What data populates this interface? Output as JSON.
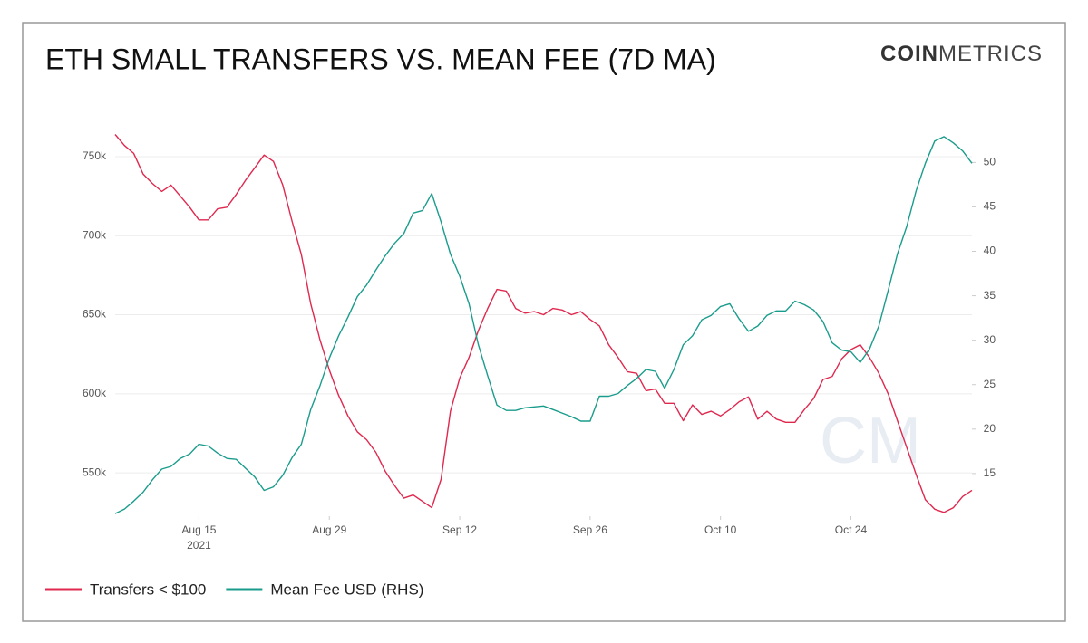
{
  "chart_data": {
    "type": "line",
    "title": "ETH SMALL TRANSFERS VS. MEAN FEE (7D MA)",
    "logo": {
      "bold": "COIN",
      "light": "METRICS"
    },
    "watermark": "CM",
    "x": [
      "2021-08-06",
      "2021-08-07",
      "2021-08-08",
      "2021-08-09",
      "2021-08-10",
      "2021-08-11",
      "2021-08-12",
      "2021-08-13",
      "2021-08-14",
      "2021-08-15",
      "2021-08-16",
      "2021-08-17",
      "2021-08-18",
      "2021-08-19",
      "2021-08-20",
      "2021-08-21",
      "2021-08-22",
      "2021-08-23",
      "2021-08-24",
      "2021-08-25",
      "2021-08-26",
      "2021-08-27",
      "2021-08-28",
      "2021-08-29",
      "2021-08-30",
      "2021-08-31",
      "2021-09-01",
      "2021-09-02",
      "2021-09-03",
      "2021-09-04",
      "2021-09-05",
      "2021-09-06",
      "2021-09-07",
      "2021-09-08",
      "2021-09-09",
      "2021-09-10",
      "2021-09-11",
      "2021-09-12",
      "2021-09-13",
      "2021-09-14",
      "2021-09-15",
      "2021-09-16",
      "2021-09-17",
      "2021-09-18",
      "2021-09-19",
      "2021-09-20",
      "2021-09-21",
      "2021-09-22",
      "2021-09-23",
      "2021-09-24",
      "2021-09-25",
      "2021-09-26",
      "2021-09-27",
      "2021-09-28",
      "2021-09-29",
      "2021-09-30",
      "2021-10-01",
      "2021-10-02",
      "2021-10-03",
      "2021-10-04",
      "2021-10-05",
      "2021-10-06",
      "2021-10-07",
      "2021-10-08",
      "2021-10-09",
      "2021-10-10",
      "2021-10-11",
      "2021-10-12",
      "2021-10-13",
      "2021-10-14",
      "2021-10-15",
      "2021-10-16",
      "2021-10-17",
      "2021-10-18",
      "2021-10-19",
      "2021-10-20",
      "2021-10-21",
      "2021-10-22",
      "2021-10-23",
      "2021-10-24",
      "2021-10-25",
      "2021-10-26",
      "2021-10-27",
      "2021-10-28",
      "2021-10-29",
      "2021-10-30",
      "2021-10-31",
      "2021-11-01",
      "2021-11-02",
      "2021-11-03",
      "2021-11-04",
      "2021-11-05",
      "2021-11-06"
    ],
    "xlim": [
      "2021-08-06",
      "2021-11-06"
    ],
    "xticks": [
      {
        "value": "2021-08-15",
        "label": "Aug 15"
      },
      {
        "value": "2021-08-29",
        "label": "Aug 29"
      },
      {
        "value": "2021-09-12",
        "label": "Sep 12"
      },
      {
        "value": "2021-09-26",
        "label": "Sep 26"
      },
      {
        "value": "2021-10-10",
        "label": "Oct 10"
      },
      {
        "value": "2021-10-24",
        "label": "Oct 24"
      }
    ],
    "x_year_label": "2021",
    "ylim": [
      522600,
      766000
    ],
    "yticks": [
      {
        "value": 550000,
        "label": "550k"
      },
      {
        "value": 600000,
        "label": "600k"
      },
      {
        "value": 650000,
        "label": "650k"
      },
      {
        "value": 700000,
        "label": "700k"
      },
      {
        "value": 750000,
        "label": "750k"
      }
    ],
    "y2lim": [
      10.2,
      53.5
    ],
    "y2ticks": [
      15,
      20,
      25,
      30,
      35,
      40,
      45,
      50
    ],
    "grid": true,
    "legend": "bottom-left",
    "series": [
      {
        "name": "Transfers < $100",
        "color": "#e0284f",
        "values": [
          764000,
          757000,
          752000,
          739000,
          733000,
          728000,
          732000,
          725000,
          718000,
          710000,
          710000,
          717000,
          718000,
          726000,
          735000,
          743000,
          751000,
          747000,
          732000,
          709000,
          688000,
          657000,
          634000,
          615000,
          599000,
          586000,
          576000,
          571000,
          563000,
          551000,
          542000,
          534000,
          536000,
          532000,
          528000,
          546000,
          589000,
          610000,
          623000,
          640000,
          654000,
          666000,
          665000,
          654000,
          651000,
          652000,
          650000,
          654000,
          653000,
          650000,
          652000,
          647000,
          643000,
          631000,
          623000,
          614000,
          613000,
          602000,
          603000,
          594000,
          594000,
          583000,
          593000,
          587000,
          589000,
          586000,
          590000,
          595000,
          598000,
          584000,
          589000,
          584000,
          582000,
          582000,
          590000,
          597000,
          609000,
          611000,
          622000,
          628000,
          631000,
          623000,
          613000,
          600000,
          583000,
          566000,
          549000,
          533000,
          527000,
          525000,
          528000,
          535000,
          539000
        ]
      },
      {
        "name": "Mean Fee USD (RHS)",
        "color": "#1a9c8c",
        "axis": "y2",
        "values": [
          10.5,
          11.0,
          11.9,
          12.9,
          14.3,
          15.5,
          15.8,
          16.7,
          17.2,
          18.3,
          18.1,
          17.3,
          16.7,
          16.6,
          15.6,
          14.6,
          13.1,
          13.5,
          14.8,
          16.8,
          18.3,
          22.2,
          24.9,
          28.0,
          30.5,
          32.6,
          34.9,
          36.2,
          37.9,
          39.5,
          40.9,
          42.0,
          44.3,
          44.6,
          46.5,
          43.3,
          39.7,
          37.2,
          34.1,
          29.5,
          26.0,
          22.7,
          22.1,
          22.1,
          22.4,
          22.5,
          22.6,
          22.2,
          21.8,
          21.4,
          20.9,
          20.9,
          23.7,
          23.7,
          24.0,
          24.9,
          25.7,
          26.7,
          26.5,
          24.6,
          26.7,
          29.5,
          30.5,
          32.3,
          32.8,
          33.8,
          34.1,
          32.4,
          31.0,
          31.6,
          32.8,
          33.3,
          33.3,
          34.4,
          34.0,
          33.4,
          32.1,
          29.7,
          28.9,
          28.7,
          27.5,
          29.0,
          31.6,
          35.6,
          39.7,
          42.8,
          46.8,
          49.9,
          52.4,
          52.9,
          52.2,
          51.3,
          49.9
        ]
      }
    ]
  }
}
